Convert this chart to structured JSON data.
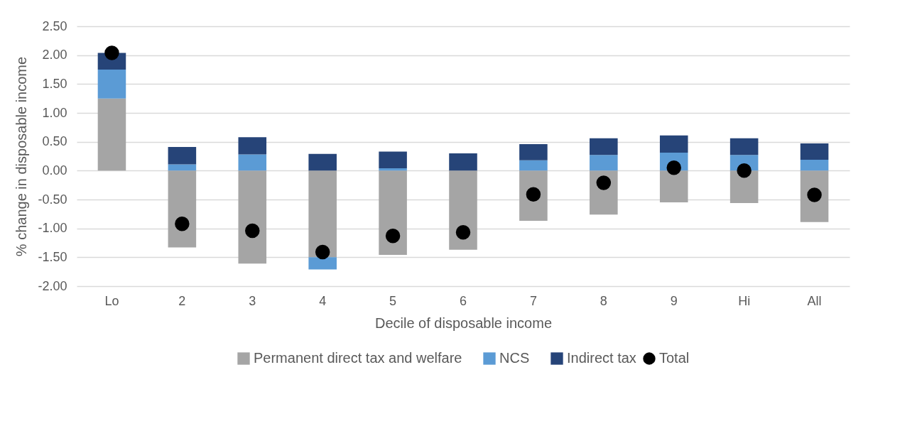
{
  "chart_data": {
    "type": "bar",
    "stacked": true,
    "xlabel": "Decile of disposable income",
    "ylabel": "% change in disposable income",
    "categories": [
      "Lo",
      "2",
      "3",
      "4",
      "5",
      "6",
      "7",
      "8",
      "9",
      "Hi",
      "All"
    ],
    "series": [
      {
        "name": "Permanent direct tax and welfare",
        "color": "#a5a5a5",
        "values": [
          1.25,
          -1.33,
          -1.61,
          -1.5,
          -1.46,
          -1.37,
          -0.87,
          -0.76,
          -0.55,
          -0.56,
          -0.89
        ]
      },
      {
        "name": "NCS",
        "color": "#5b9bd5",
        "values": [
          0.5,
          0.11,
          0.28,
          -0.21,
          0.04,
          0,
          0.18,
          0.27,
          0.31,
          0.27,
          0.19
        ]
      },
      {
        "name": "Indirect tax",
        "color": "#264478",
        "values": [
          0.29,
          0.3,
          0.3,
          0.29,
          0.29,
          0.3,
          0.28,
          0.29,
          0.3,
          0.29,
          0.28
        ]
      },
      {
        "name": "Total",
        "type": "scatter",
        "color": "#000000",
        "marker": "circle",
        "values": [
          2.04,
          -0.92,
          -1.04,
          -1.41,
          -1.13,
          -1.07,
          -0.41,
          -0.21,
          0.05,
          0.0,
          -0.42
        ]
      }
    ],
    "ylim": [
      -2.0,
      2.5
    ],
    "yticks": [
      {
        "value": -2,
        "label": "-2.00"
      },
      {
        "value": -1.5,
        "label": "-1.50"
      },
      {
        "value": -1,
        "label": "-1.00"
      },
      {
        "value": -0.5,
        "label": "-0.50"
      },
      {
        "value": 0,
        "label": "0.00"
      },
      {
        "value": 0.5,
        "label": "0.50"
      },
      {
        "value": 1,
        "label": "1.00"
      },
      {
        "value": 1.5,
        "label": "1.50"
      },
      {
        "value": 2,
        "label": "2.00"
      },
      {
        "value": 2.5,
        "label": "2.50"
      }
    ],
    "grid": "y",
    "legend": "bottom"
  }
}
